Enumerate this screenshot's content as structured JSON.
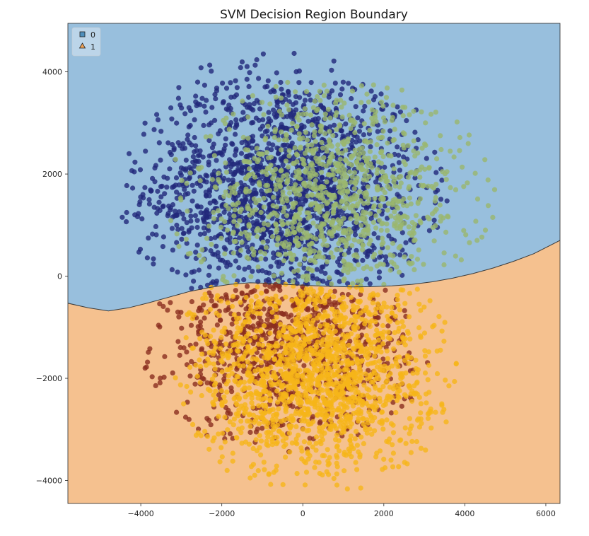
{
  "chart_data": {
    "type": "scatter",
    "title": "SVM Decision Region Boundary",
    "xlabel": "",
    "ylabel": "",
    "xlim": [
      -5800,
      6350
    ],
    "ylim": [
      -4450,
      4950
    ],
    "xticks": [
      -4000,
      -2000,
      0,
      2000,
      4000,
      6000
    ],
    "yticks": [
      -4000,
      -2000,
      0,
      2000,
      4000
    ],
    "xtick_labels": [
      "−4000",
      "−2000",
      "0",
      "2000",
      "4000",
      "6000"
    ],
    "ytick_labels": [
      "−4000",
      "−2000",
      "0",
      "2000",
      "4000"
    ],
    "grid": false,
    "legend_position": "top-left",
    "regions": [
      {
        "label": "0",
        "color": "#98bfdd",
        "side": "above boundary"
      },
      {
        "label": "1",
        "color": "#f5c18f",
        "side": "below boundary"
      }
    ],
    "legend": [
      {
        "label": "0",
        "marker": "square",
        "color": "#4e8fbd"
      },
      {
        "label": "1",
        "marker": "triangle",
        "color": "#f0a155"
      }
    ],
    "boundary": {
      "color": "#3a3a3a",
      "points": [
        [
          -5800,
          -530
        ],
        [
          -5300,
          -620
        ],
        [
          -4800,
          -680
        ],
        [
          -4300,
          -620
        ],
        [
          -3800,
          -520
        ],
        [
          -3300,
          -410
        ],
        [
          -2800,
          -300
        ],
        [
          -2300,
          -220
        ],
        [
          -1800,
          -160
        ],
        [
          -1300,
          -130
        ],
        [
          -800,
          -140
        ],
        [
          -300,
          -165
        ],
        [
          200,
          -185
        ],
        [
          700,
          -200
        ],
        [
          1200,
          -210
        ],
        [
          1700,
          -205
        ],
        [
          2200,
          -190
        ],
        [
          2700,
          -160
        ],
        [
          3200,
          -110
        ],
        [
          3700,
          -40
        ],
        [
          4200,
          50
        ],
        [
          4700,
          160
        ],
        [
          5200,
          290
        ],
        [
          5700,
          440
        ],
        [
          6350,
          700
        ]
      ]
    },
    "point_series": [
      {
        "color": "#22287a",
        "center": [
          -500,
          1700
        ],
        "spread": [
          1700,
          1150
        ],
        "count": 1700,
        "side": "above"
      },
      {
        "color": "#9ab76e",
        "center": [
          700,
          1500
        ],
        "spread": [
          1700,
          1050
        ],
        "count": 1050,
        "side": "above"
      },
      {
        "color": "#8b2e1f",
        "center": [
          -400,
          -1350
        ],
        "spread": [
          1500,
          900
        ],
        "count": 850,
        "side": "below"
      },
      {
        "color": "#f6b519",
        "center": [
          300,
          -1900
        ],
        "spread": [
          1500,
          1000
        ],
        "count": 1600,
        "side": "below"
      }
    ]
  }
}
